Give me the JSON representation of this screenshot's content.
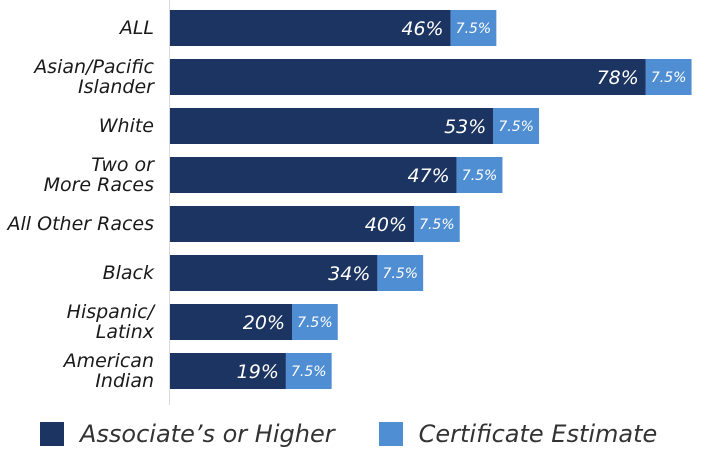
{
  "chart_data": {
    "type": "bar",
    "orientation": "horizontal",
    "stacked": true,
    "categories": [
      [
        "ALL"
      ],
      [
        "Asian/Pacific",
        "Islander"
      ],
      [
        "White"
      ],
      [
        "Two or",
        "More Races"
      ],
      [
        "All Other Races"
      ],
      [
        "Black"
      ],
      [
        "Hispanic/",
        "Latinx"
      ],
      [
        "American",
        "Indian"
      ]
    ],
    "series": [
      {
        "name": "Associate’s or Higher",
        "values": [
          46,
          78,
          53,
          47,
          40,
          34,
          20,
          19
        ],
        "labels": [
          "46%",
          "78%",
          "53%",
          "47%",
          "40%",
          "34%",
          "20%",
          "19%"
        ],
        "color": "#1b3461"
      },
      {
        "name": "Certificate Estimate",
        "values": [
          7.5,
          7.5,
          7.5,
          7.5,
          7.5,
          7.5,
          7.5,
          7.5
        ],
        "labels": [
          "7.5%",
          "7.5%",
          "7.5%",
          "7.5%",
          "7.5%",
          "7.5%",
          "7.5%",
          "7.5%"
        ],
        "color": "#4f8ed2"
      }
    ],
    "xlim": [
      0,
      100
    ],
    "grid": false,
    "legend_position": "bottom"
  },
  "legend": {
    "item1_label": "Associate’s or Higher",
    "item2_label": "Certificate Estimate"
  },
  "colors": {
    "primary": "#1b3461",
    "secondary": "#4f8ed2"
  }
}
